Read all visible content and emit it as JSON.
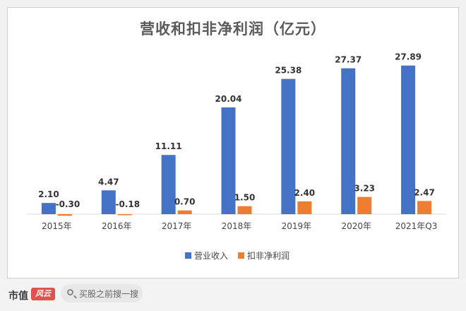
{
  "chart_data": {
    "type": "bar",
    "title": "营收和扣非净利润（亿元）",
    "categories": [
      "2015年",
      "2016年",
      "2017年",
      "2018年",
      "2019年",
      "2020年",
      "2021年Q3"
    ],
    "series": [
      {
        "name": "营业收入",
        "values": [
          2.1,
          4.47,
          11.11,
          20.04,
          25.38,
          27.37,
          27.89
        ],
        "labels": [
          "2.10",
          "4.47",
          "11.11",
          "20.04",
          "25.38",
          "27.37",
          "27.89"
        ],
        "color": "#4472c4"
      },
      {
        "name": "扣非净利润",
        "values": [
          -0.3,
          -0.18,
          0.7,
          1.5,
          2.4,
          3.23,
          2.47
        ],
        "labels": [
          "-0.30",
          "-0.18",
          "0.70",
          "1.50",
          "2.40",
          "3.23",
          "2.47"
        ],
        "color": "#ed7d31"
      }
    ],
    "ylim": [
      -0.5,
      30
    ],
    "grid": false,
    "legend_position": "bottom"
  },
  "footer": {
    "brand": "市值",
    "brand_mark": "风云",
    "search_placeholder": "买股之前搜一搜"
  }
}
